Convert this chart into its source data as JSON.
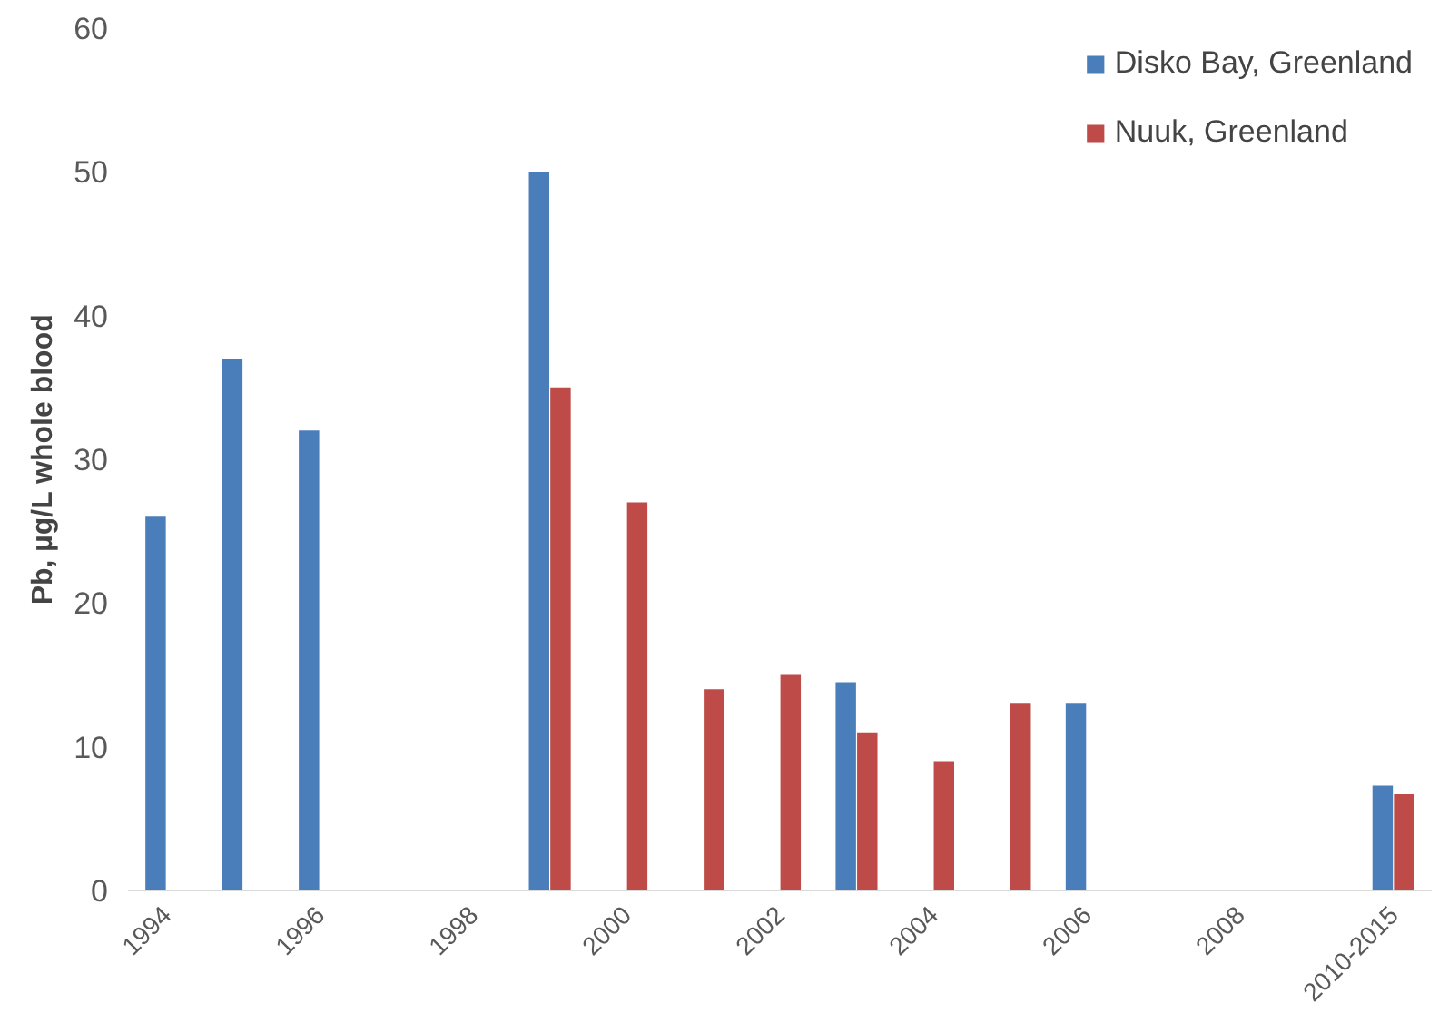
{
  "chart_data": {
    "type": "bar",
    "ylabel": "Pb, µg/L whole blood",
    "categories": [
      "1994",
      null,
      "1996",
      null,
      "1998",
      null,
      "2000",
      null,
      "2002",
      null,
      "2004",
      null,
      "2006",
      null,
      "2008",
      null,
      "2010-2015"
    ],
    "series": [
      {
        "name": "Disko Bay, Greenland",
        "color": "#4a7ebb",
        "values": [
          26,
          37,
          32,
          null,
          null,
          50,
          null,
          null,
          null,
          14.5,
          null,
          null,
          13,
          null,
          null,
          null,
          7.3
        ]
      },
      {
        "name": "Nuuk, Greenland",
        "color": "#be4b48",
        "values": [
          null,
          null,
          null,
          null,
          null,
          35,
          27,
          14,
          15,
          11,
          9,
          13,
          null,
          null,
          null,
          null,
          6.7
        ]
      }
    ],
    "ylim": [
      0,
      60
    ],
    "yticks": [
      0,
      10,
      20,
      30,
      40,
      50,
      60
    ],
    "grid": false,
    "legend": "top right"
  }
}
